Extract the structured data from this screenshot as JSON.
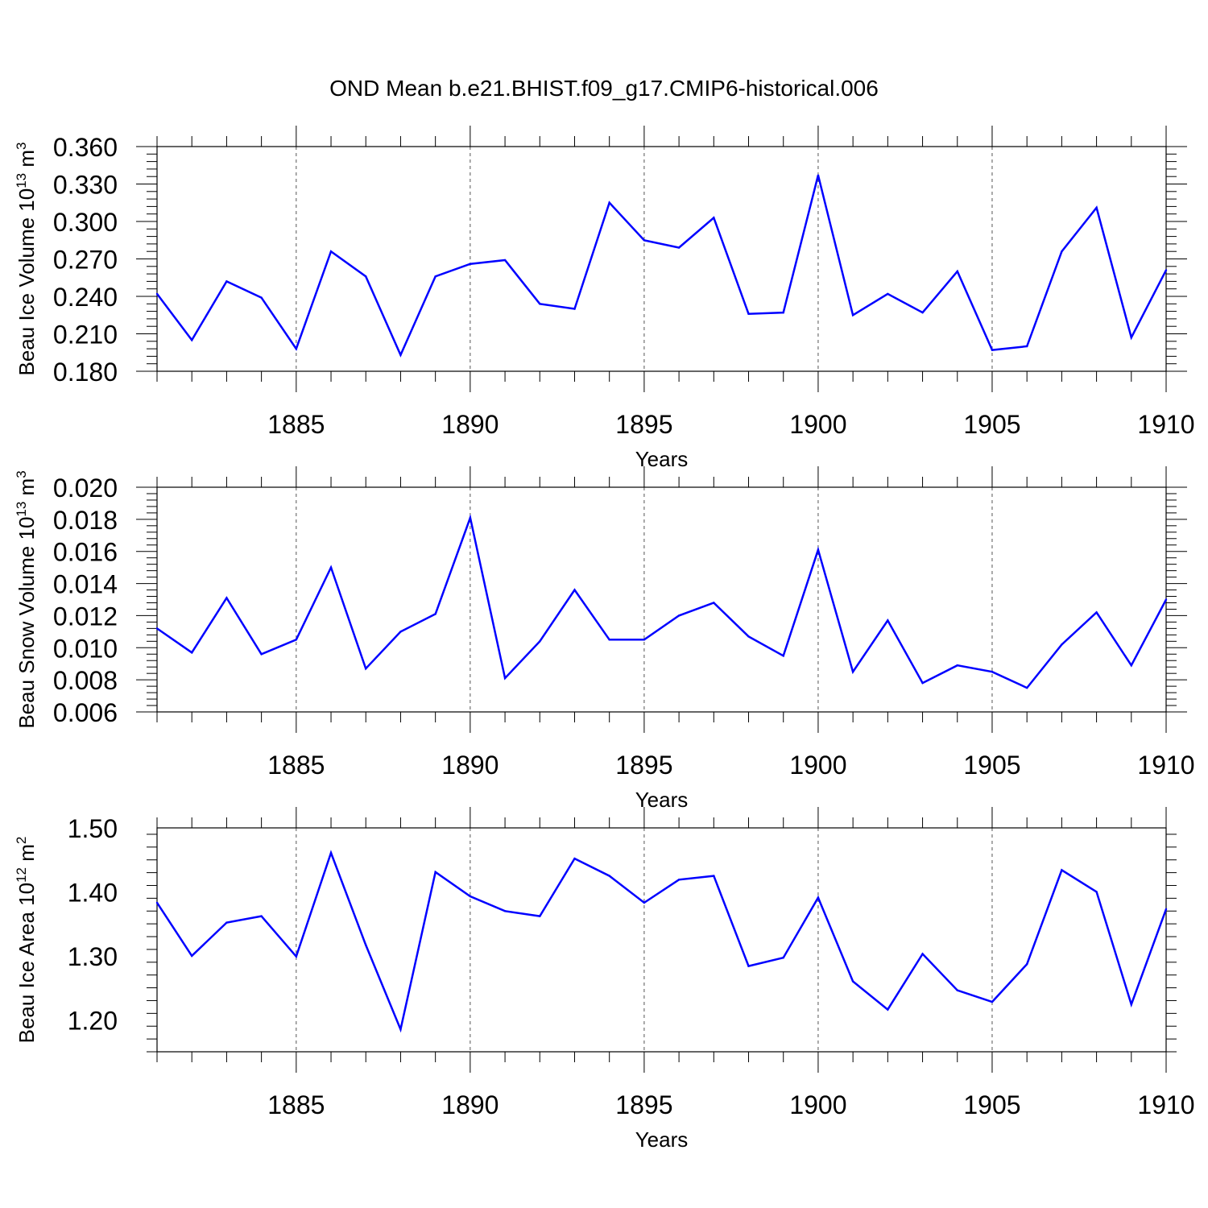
{
  "title": "OND Mean b.e21.BHIST.f09_g17.CMIP6-historical.006",
  "line_color": "#0000ff",
  "chart_data": [
    {
      "type": "line",
      "ylabel": "Beau Ice Volume 10",
      "ylabel_exp": "13",
      "ylabel_unit": "m",
      "ylabel_unit_exp": "3",
      "xlabel": "Years",
      "xlim": [
        1881,
        1910
      ],
      "ylim": [
        0.18,
        0.36
      ],
      "yticks": [
        "0.180",
        "0.210",
        "0.240",
        "0.270",
        "0.300",
        "0.330",
        "0.360"
      ],
      "xticks": [
        "1885",
        "1890",
        "1895",
        "1900",
        "1905",
        "1910"
      ],
      "x": [
        1881,
        1882,
        1883,
        1884,
        1885,
        1886,
        1887,
        1888,
        1889,
        1890,
        1891,
        1892,
        1893,
        1894,
        1895,
        1896,
        1897,
        1898,
        1899,
        1900,
        1901,
        1902,
        1903,
        1904,
        1905,
        1906,
        1907,
        1908,
        1909,
        1910
      ],
      "series": [
        {
          "values": [
            0.242,
            0.205,
            0.252,
            0.239,
            0.198,
            0.276,
            0.256,
            0.193,
            0.256,
            0.266,
            0.269,
            0.234,
            0.23,
            0.315,
            0.285,
            0.279,
            0.303,
            0.226,
            0.227,
            0.337,
            0.225,
            0.242,
            0.227,
            0.26,
            0.197,
            0.2,
            0.276,
            0.311,
            0.207,
            0.261
          ]
        }
      ]
    },
    {
      "type": "line",
      "ylabel": "Beau Snow Volume 10",
      "ylabel_exp": "13",
      "ylabel_unit": "m",
      "ylabel_unit_exp": "3",
      "xlabel": "Years",
      "xlim": [
        1881,
        1910
      ],
      "ylim": [
        0.006,
        0.02
      ],
      "yticks": [
        "0.006",
        "0.008",
        "0.010",
        "0.012",
        "0.014",
        "0.016",
        "0.018",
        "0.020"
      ],
      "xticks": [
        "1885",
        "1890",
        "1895",
        "1900",
        "1905",
        "1910"
      ],
      "x": [
        1881,
        1882,
        1883,
        1884,
        1885,
        1886,
        1887,
        1888,
        1889,
        1890,
        1891,
        1892,
        1893,
        1894,
        1895,
        1896,
        1897,
        1898,
        1899,
        1900,
        1901,
        1902,
        1903,
        1904,
        1905,
        1906,
        1907,
        1908,
        1909,
        1910
      ],
      "series": [
        {
          "values": [
            0.0112,
            0.0097,
            0.0131,
            0.0096,
            0.0105,
            0.015,
            0.0087,
            0.011,
            0.0121,
            0.0181,
            0.0081,
            0.0104,
            0.0136,
            0.0105,
            0.0105,
            0.012,
            0.0128,
            0.0107,
            0.0095,
            0.0161,
            0.0085,
            0.0117,
            0.0078,
            0.0089,
            0.0085,
            0.0075,
            0.0102,
            0.0122,
            0.0089,
            0.013
          ]
        }
      ]
    },
    {
      "type": "line",
      "ylabel": "Beau Ice Area 10",
      "ylabel_exp": "12",
      "ylabel_unit": "m",
      "ylabel_unit_exp": "2",
      "xlabel": "Years",
      "xlim": [
        1881,
        1910
      ],
      "ylim": [
        1.15,
        1.5
      ],
      "yticks": [
        "1.20",
        "1.30",
        "1.40",
        "1.50"
      ],
      "xticks": [
        "1885",
        "1890",
        "1895",
        "1900",
        "1905",
        "1910"
      ],
      "x": [
        1881,
        1882,
        1883,
        1884,
        1885,
        1886,
        1887,
        1888,
        1889,
        1890,
        1891,
        1892,
        1893,
        1894,
        1895,
        1896,
        1897,
        1898,
        1899,
        1900,
        1901,
        1902,
        1903,
        1904,
        1905,
        1906,
        1907,
        1908,
        1909,
        1910
      ],
      "series": [
        {
          "values": [
            1.383,
            1.3,
            1.352,
            1.362,
            1.299,
            1.461,
            1.317,
            1.185,
            1.431,
            1.393,
            1.37,
            1.362,
            1.452,
            1.425,
            1.383,
            1.419,
            1.425,
            1.284,
            1.297,
            1.391,
            1.26,
            1.216,
            1.303,
            1.246,
            1.228,
            1.287,
            1.434,
            1.4,
            1.224,
            1.373
          ]
        }
      ]
    }
  ]
}
